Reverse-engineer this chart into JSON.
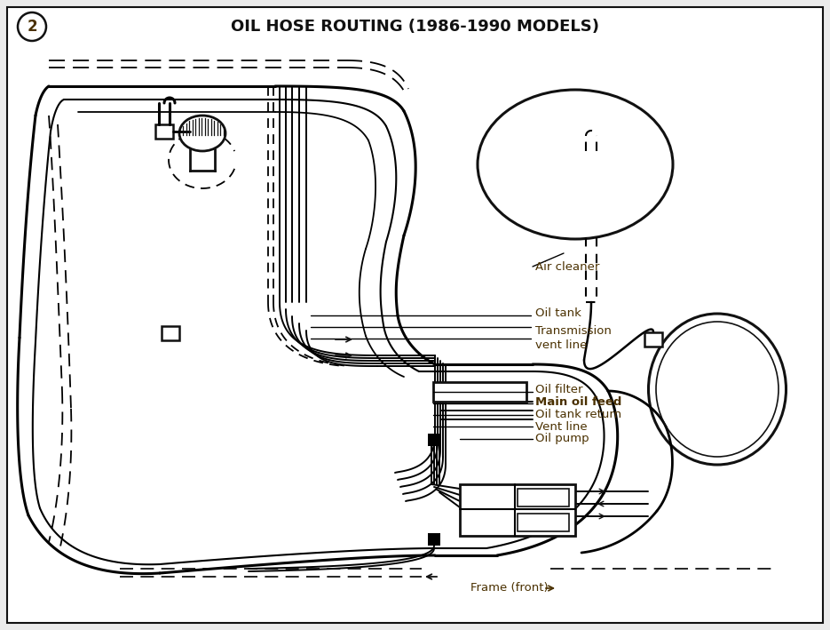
{
  "title": "OIL HOSE ROUTING (1986-1990 MODELS)",
  "title_fontsize": 13,
  "title_fontweight": "bold",
  "bg_color": "#ebebeb",
  "line_color": "#111111",
  "label_color": "#4a3000",
  "circle_num": "2",
  "labels": {
    "air_cleaner": "Air cleaner",
    "oil_tank": "Oil tank",
    "transmission_vent_line": "Transmission\nvent line",
    "oil_filter": "Oil filter",
    "main_oil_feed": "Main oil feed",
    "oil_tank_return": "Oil tank return",
    "vent_line": "Vent line",
    "oil_pump": "Oil pump",
    "frame_front": "Frame (front)"
  },
  "fig_w": 9.35,
  "fig_h": 7.09,
  "dpi": 100
}
